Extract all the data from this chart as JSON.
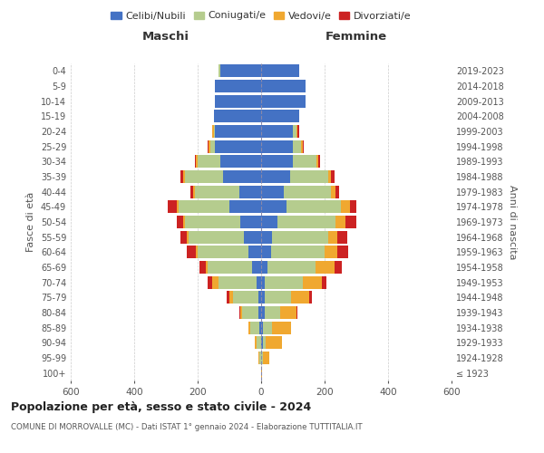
{
  "age_groups": [
    "100+",
    "95-99",
    "90-94",
    "85-89",
    "80-84",
    "75-79",
    "70-74",
    "65-69",
    "60-64",
    "55-59",
    "50-54",
    "45-49",
    "40-44",
    "35-39",
    "30-34",
    "25-29",
    "20-24",
    "15-19",
    "10-14",
    "5-9",
    "0-4"
  ],
  "birth_years": [
    "≤ 1923",
    "1924-1928",
    "1929-1933",
    "1934-1938",
    "1939-1943",
    "1944-1948",
    "1949-1953",
    "1954-1958",
    "1959-1963",
    "1964-1968",
    "1969-1973",
    "1974-1978",
    "1979-1983",
    "1984-1988",
    "1989-1993",
    "1994-1998",
    "1999-2003",
    "2004-2008",
    "2009-2013",
    "2014-2018",
    "2019-2023"
  ],
  "males": {
    "celibe": [
      0,
      0,
      0,
      5,
      10,
      10,
      15,
      30,
      40,
      55,
      65,
      100,
      70,
      120,
      130,
      145,
      145,
      150,
      145,
      145,
      130
    ],
    "coniugato": [
      0,
      5,
      15,
      30,
      50,
      80,
      120,
      140,
      160,
      175,
      175,
      160,
      140,
      120,
      70,
      15,
      5,
      0,
      0,
      0,
      5
    ],
    "vedovo": [
      0,
      5,
      5,
      5,
      5,
      10,
      20,
      5,
      5,
      5,
      5,
      5,
      5,
      5,
      5,
      5,
      5,
      0,
      0,
      0,
      0
    ],
    "divorziato": [
      0,
      0,
      0,
      0,
      5,
      10,
      15,
      20,
      30,
      20,
      20,
      30,
      8,
      10,
      5,
      5,
      0,
      0,
      0,
      0,
      0
    ]
  },
  "females": {
    "nubile": [
      0,
      0,
      5,
      5,
      10,
      10,
      10,
      20,
      30,
      35,
      50,
      80,
      70,
      90,
      100,
      100,
      100,
      120,
      140,
      140,
      120
    ],
    "coniugata": [
      0,
      5,
      10,
      30,
      50,
      85,
      120,
      150,
      170,
      175,
      185,
      170,
      150,
      120,
      75,
      25,
      10,
      0,
      0,
      0,
      0
    ],
    "vedova": [
      2,
      20,
      50,
      60,
      50,
      55,
      60,
      60,
      40,
      30,
      30,
      30,
      15,
      10,
      5,
      5,
      5,
      0,
      0,
      0,
      0
    ],
    "divorziata": [
      0,
      0,
      0,
      0,
      5,
      10,
      15,
      25,
      35,
      30,
      35,
      20,
      12,
      10,
      5,
      5,
      5,
      0,
      0,
      0,
      0
    ]
  },
  "colors": {
    "celibe": "#4472c4",
    "coniugato": "#b5cc8e",
    "vedovo": "#f0a830",
    "divorziato": "#cc2222"
  },
  "legend_labels": [
    "Celibi/Nubili",
    "Coniugati/e",
    "Vedovi/e",
    "Divorziati/e"
  ],
  "title": "Popolazione per età, sesso e stato civile - 2024",
  "subtitle": "COMUNE DI MORROVALLE (MC) - Dati ISTAT 1° gennaio 2024 - Elaborazione TUTTITALIA.IT",
  "xlabel_left": "Maschi",
  "xlabel_right": "Femmine",
  "ylabel_left": "Fasce di età",
  "ylabel_right": "Anni di nascita",
  "xlim": 600,
  "bg_color": "#ffffff",
  "grid_color": "#cccccc",
  "bar_height": 0.85
}
